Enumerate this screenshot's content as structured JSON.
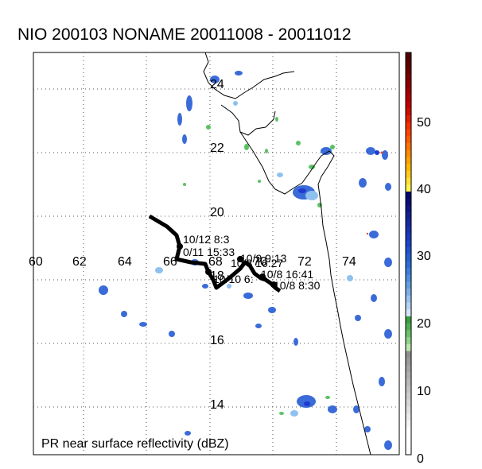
{
  "title": "NIO 200103 NONAME 20011008 - 20011012",
  "footer_label": "PR near surface reflectivity (dBZ)",
  "longitude_labels": [
    "60",
    "62",
    "64",
    "66",
    "68",
    "70",
    "72",
    "74"
  ],
  "latitude_labels": [
    "24",
    "22",
    "20",
    "18",
    "16",
    "14"
  ],
  "colorbar": {
    "ticks": [
      "50",
      "40",
      "30",
      "20",
      "10",
      "0"
    ],
    "min": 0,
    "max": 58
  },
  "track": {
    "labels": [
      "10/12 8:3",
      "0/11 15:33",
      "10/9 9:13",
      "10/8 16:27",
      "10/10 6:",
      "10/8 16:41",
      "10/8 8:30"
    ]
  },
  "colors": {
    "coastline": "#000000",
    "track": "#000000",
    "grid": "#555555"
  }
}
